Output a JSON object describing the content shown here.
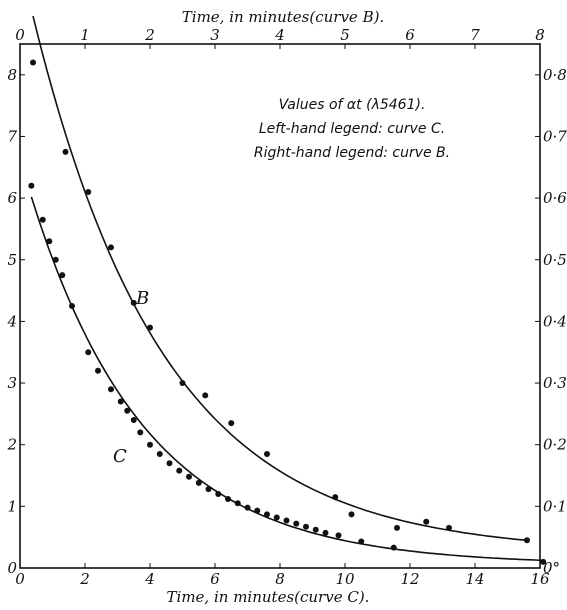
{
  "chart_data": {
    "type": "scatter",
    "title": "",
    "annotations": [
      "Values of αt (λ5461).",
      "Left-hand legend: curve C.",
      "Right-hand legend: curve B."
    ],
    "top_axis": {
      "label": "Time, in minutes(curve B).",
      "range": [
        0,
        8
      ],
      "ticks": [
        "0",
        "1",
        "2",
        "3",
        "4",
        "5",
        "6",
        "7",
        "8"
      ]
    },
    "bottom_axis": {
      "label": "Time, in minutes(curve C).",
      "range": [
        0,
        16
      ],
      "ticks": [
        "0",
        "2",
        "4",
        "6",
        "8",
        "10",
        "12",
        "14",
        "16"
      ]
    },
    "left_axis": {
      "range": [
        0,
        8.5
      ],
      "ticks": [
        "0",
        "1",
        "2",
        "3",
        "4",
        "5",
        "6",
        "7",
        "8"
      ]
    },
    "right_axis": {
      "range": [
        0,
        0.85
      ],
      "ticks": [
        "0°",
        "0·1°",
        "0·2°",
        "0·3°",
        "0·4°",
        "0·5°",
        "0·6°",
        "0·7°",
        "0·8°"
      ]
    },
    "grid": false,
    "series": [
      {
        "name": "B",
        "x_axis": "top",
        "y_axis": "right",
        "points": [
          [
            0.2,
            0.82
          ],
          [
            0.7,
            0.675
          ],
          [
            1.05,
            0.61
          ],
          [
            1.4,
            0.52
          ],
          [
            1.75,
            0.43
          ],
          [
            2.0,
            0.39
          ],
          [
            2.5,
            0.3
          ],
          [
            2.85,
            0.28
          ],
          [
            3.25,
            0.235
          ],
          [
            3.8,
            0.185
          ],
          [
            4.85,
            0.115
          ],
          [
            5.1,
            0.087
          ],
          [
            5.8,
            0.065
          ],
          [
            6.25,
            0.075
          ],
          [
            6.6,
            0.065
          ],
          [
            7.8,
            0.045
          ]
        ]
      },
      {
        "name": "C",
        "x_axis": "bottom",
        "y_axis": "left",
        "points": [
          [
            0.35,
            6.2
          ],
          [
            0.7,
            5.65
          ],
          [
            0.9,
            5.3
          ],
          [
            1.1,
            5.0
          ],
          [
            1.3,
            4.75
          ],
          [
            1.6,
            4.25
          ],
          [
            2.1,
            3.5
          ],
          [
            2.4,
            3.2
          ],
          [
            2.8,
            2.9
          ],
          [
            3.1,
            2.7
          ],
          [
            3.3,
            2.55
          ],
          [
            3.5,
            2.4
          ],
          [
            3.7,
            2.2
          ],
          [
            4.0,
            2.0
          ],
          [
            4.3,
            1.85
          ],
          [
            4.6,
            1.7
          ],
          [
            4.9,
            1.58
          ],
          [
            5.2,
            1.48
          ],
          [
            5.5,
            1.38
          ],
          [
            5.8,
            1.28
          ],
          [
            6.1,
            1.2
          ],
          [
            6.4,
            1.12
          ],
          [
            6.7,
            1.05
          ],
          [
            7.0,
            0.98
          ],
          [
            7.3,
            0.93
          ],
          [
            7.6,
            0.87
          ],
          [
            7.9,
            0.82
          ],
          [
            8.2,
            0.77
          ],
          [
            8.5,
            0.72
          ],
          [
            8.8,
            0.67
          ],
          [
            9.1,
            0.62
          ],
          [
            9.4,
            0.57
          ],
          [
            9.8,
            0.53
          ],
          [
            10.5,
            0.43
          ],
          [
            11.5,
            0.33
          ],
          [
            16.1,
            0.1
          ]
        ]
      }
    ]
  }
}
